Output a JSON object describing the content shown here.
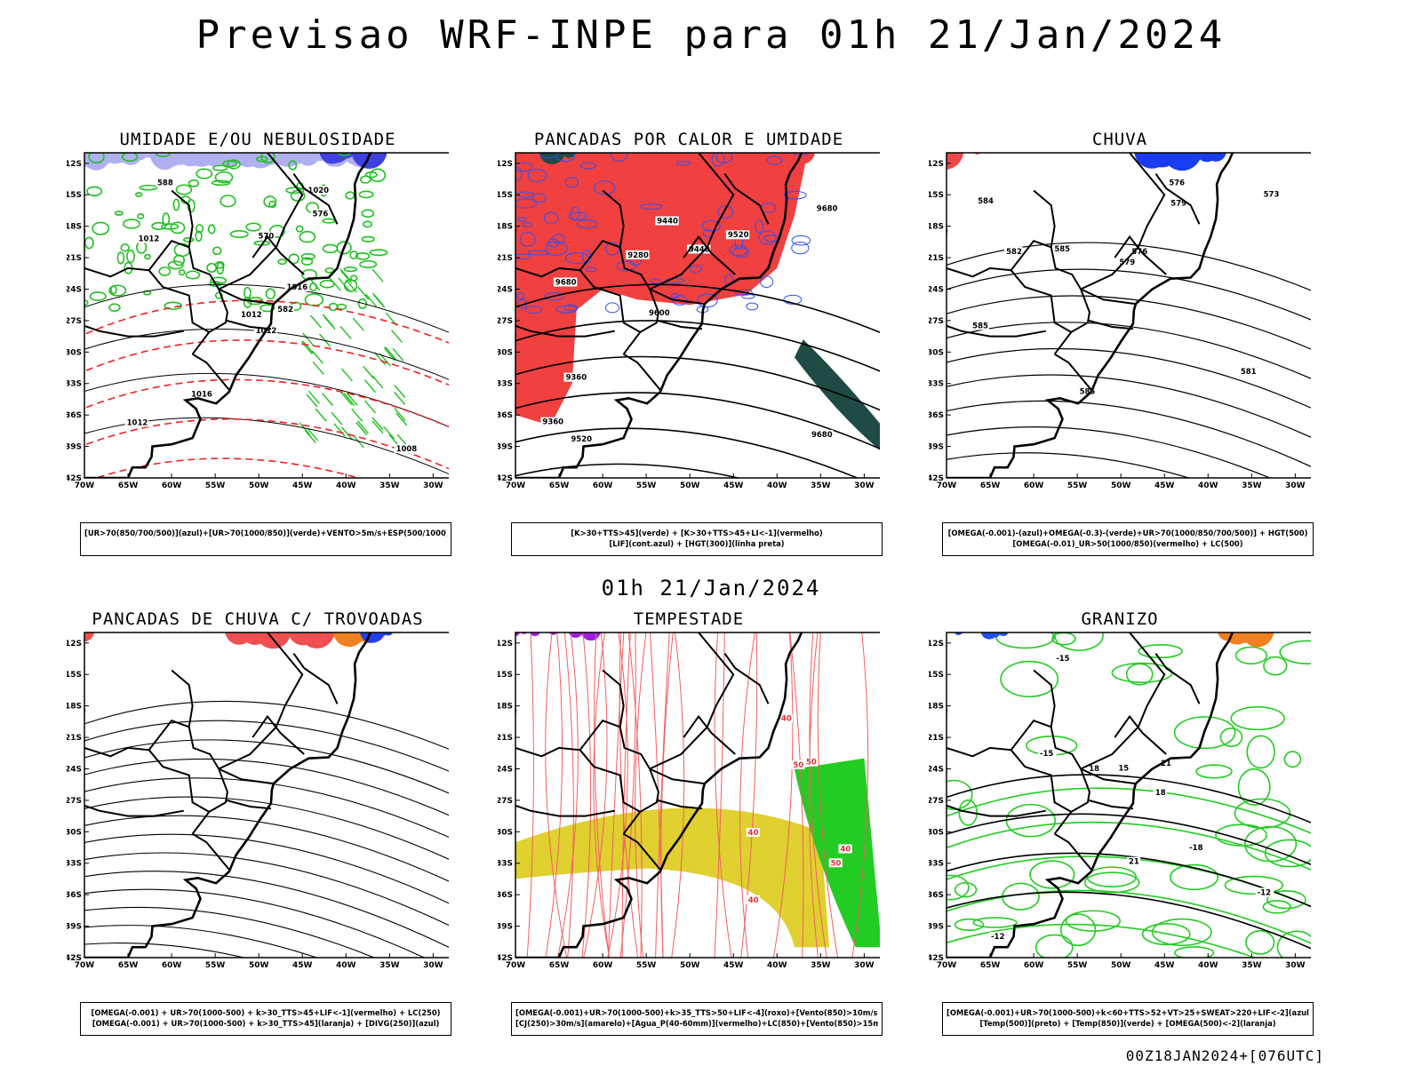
{
  "title": "Previsao WRF-INPE  para 01h 21/Jan/2024",
  "subtitle": "01h 21/Jan/2024",
  "footer": "00Z18JAN2024+[076UTC]",
  "axes": {
    "lat_labels": [
      "12S",
      "15S",
      "18S",
      "21S",
      "24S",
      "27S",
      "30S",
      "33S",
      "36S",
      "39S",
      "42S"
    ],
    "lon_labels": [
      "70W",
      "65W",
      "60W",
      "55W",
      "50W",
      "45W",
      "40W",
      "35W",
      "30W"
    ]
  },
  "panels": [
    {
      "title": "UMIDADE E/OU NEBULOSIDADE",
      "legend": [
        "[UR>70(850/700/500)](azul)+[UR>70(1000/850)](verde)+VENTO>5m/s+ESP(500/1000)"
      ],
      "layer_colors": {
        "azul": "#b0b0f0",
        "verde": "#20c020",
        "vermelho": "#ee2222"
      },
      "contour_labels": [
        "1012",
        "1012",
        "1012",
        "1012",
        "1016",
        "1016",
        "1020",
        "570",
        "576",
        "582",
        "588",
        "1008"
      ]
    },
    {
      "title": "PANCADAS POR CALOR E UMIDADE",
      "legend": [
        "[K>30+TTS>45](verde) + [K>30+TTS>45+LI<-1](vermelho)",
        "[LIF](cont.azul) + [HGT(300)](linha preta)"
      ],
      "layer_colors": {
        "verde": "#1f4b44",
        "vermelho": "#f04040",
        "azul": "#3050f0"
      },
      "contour_labels": [
        "9680",
        "9680",
        "9680",
        "9600",
        "9520",
        "9520",
        "9440",
        "9440",
        "9360",
        "9280",
        "9360"
      ]
    },
    {
      "title": "CHUVA",
      "legend": [
        "[OMEGA(-0.001)-(azul)+OMEGA(-0.3)-(verde)+UR>70(1000/850/700/500)] + HGT(500)",
        "[OMEGA(-0.01)_UR>50(1000/850)(vermelho) + LC(500)"
      ],
      "layer_colors": {
        "azul": "#1a3cf0",
        "verde": "#22cc22",
        "vermelho": "#f04848"
      },
      "contour_labels": [
        "585",
        "585",
        "585",
        "579",
        "576",
        "573",
        "582",
        "579",
        "576",
        "584",
        "581"
      ]
    },
    {
      "title": "PANCADAS DE CHUVA C/ TROVOADAS",
      "legend": [
        "[OMEGA(-0.001) + UR>70(1000-500) + k>30_TTS>45+LIF<-1](vermelho) + LC(250)",
        "[OMEGA(-0.001) + UR>70(1000-500) + k>30_TTS>45](laranja) + [DIVG(250)](azul)"
      ],
      "layer_colors": {
        "vermelho": "#f05050",
        "laranja": "#f08020",
        "azul": "#2040f0"
      },
      "contour_labels": []
    },
    {
      "title": "TEMPESTADE",
      "legend": [
        "[OMEGA(-0.001)+UR>70(1000-500)+k>35_TTS>50+LIF<-4](roxo)+[Vento(850)>10m/s](verde)",
        "[CJ(250)>30m/s](amarelo)+[Agua_P(40-60mm)](vermelho)+LC(850)+[Vento(850)>15m/s](vetor)"
      ],
      "layer_colors": {
        "roxo": "#a020e0",
        "verde": "#22cc22",
        "amarelo": "#e0d030",
        "vermelho": "#f06060"
      },
      "contour_labels": [
        "40",
        "40",
        "50",
        "50",
        "40",
        "40",
        "50"
      ]
    },
    {
      "title": "GRANIZO",
      "legend": [
        "[OMEGA(-0.001)+UR>70(1000-500)+k<60+TTS>52+VT>25+SWEAT>220+LIF<-2](azul)",
        "[Temp(500)](preto) + [Temp(850)](verde) + [OMEGA(500)<-2](laranja)"
      ],
      "layer_colors": {
        "azul": "#2050f0",
        "verde": "#22cc22",
        "laranja": "#f08020"
      },
      "contour_labels": [
        "-12",
        "-12",
        "-15",
        "-15",
        "-18",
        "21",
        "18",
        "15",
        "18",
        "21"
      ]
    }
  ]
}
